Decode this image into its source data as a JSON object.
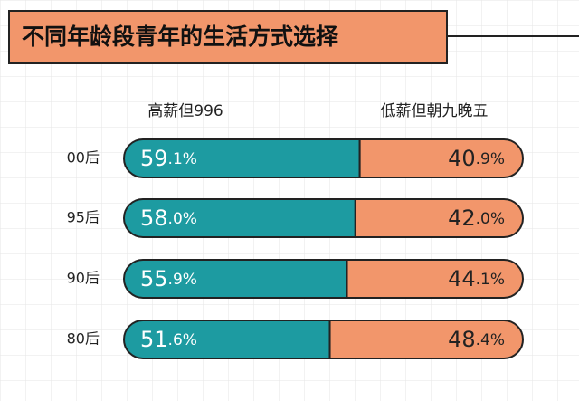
{
  "chart_data": {
    "type": "stacked-bar",
    "title": "不同年龄段青年的生活方式选择",
    "categories": [
      "00后",
      "95后",
      "90后",
      "80后"
    ],
    "xlim": [
      0,
      100
    ],
    "series": [
      {
        "name": "高薪但996",
        "color": "#1d9ba1",
        "values": [
          59.1,
          58.0,
          55.9,
          51.6
        ],
        "value_labels": [
          "59.1%",
          "58.0%",
          "55.9%",
          "51.6%"
        ]
      },
      {
        "name": "低薪但朝九晚五",
        "color": "#f2966b",
        "values": [
          40.9,
          42.0,
          44.1,
          48.4
        ],
        "value_labels": [
          "40.9%",
          "42.0%",
          "44.1%",
          "48.4%"
        ]
      }
    ]
  }
}
